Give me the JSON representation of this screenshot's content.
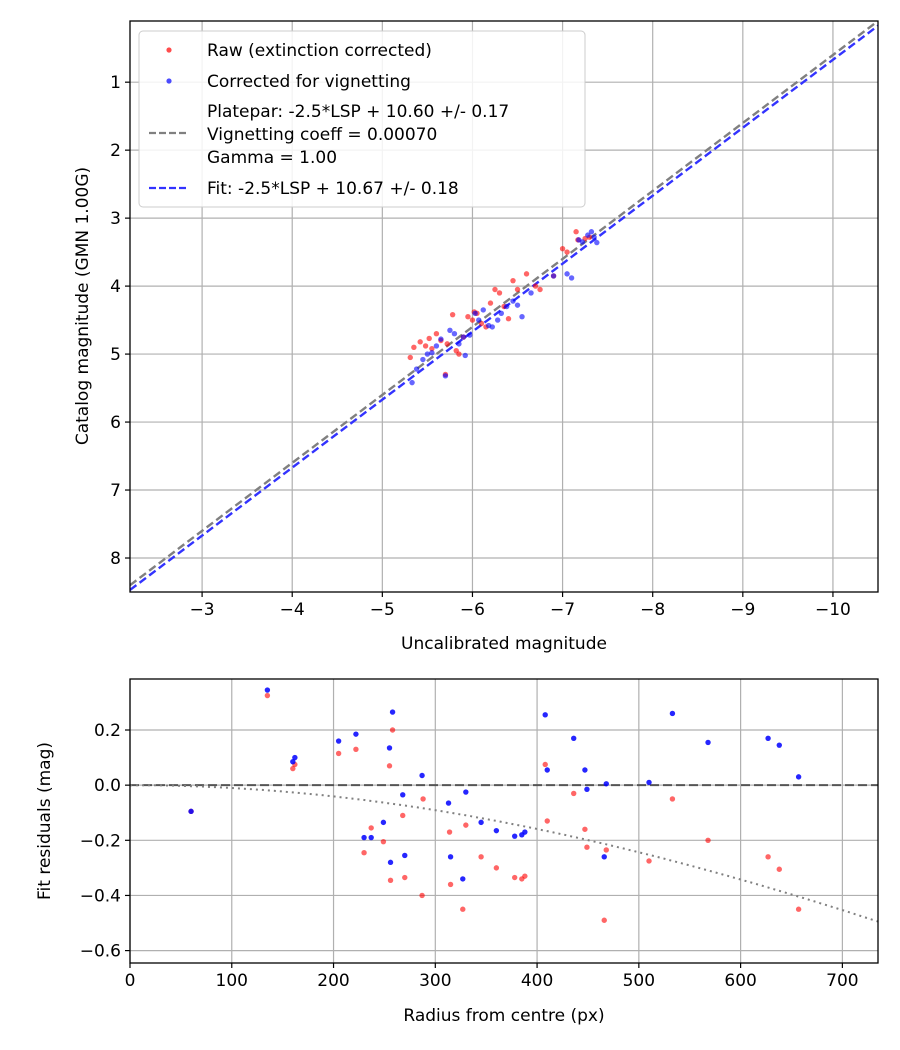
{
  "colors": {
    "raw": "#ff0000",
    "corrected": "#0000ff",
    "platepar_line": "#808080",
    "fit_line": "#3333ff",
    "zero_line": "#555555",
    "vignetting_curve": "#808080"
  },
  "chart_data": [
    {
      "id": "top",
      "type": "scatter",
      "xlabel": "Uncalibrated magnitude",
      "ylabel": "Catalog magnitude (GMN 1.00G)",
      "xlim": [
        -2.2,
        -10.5
      ],
      "ylim": [
        8.5,
        0.1
      ],
      "xticks": [
        -3,
        -4,
        -5,
        -6,
        -7,
        -8,
        -9,
        -10
      ],
      "xtick_labels": [
        "−3",
        "−4",
        "−5",
        "−6",
        "−7",
        "−8",
        "−9",
        "−10"
      ],
      "yticks": [
        1,
        2,
        3,
        4,
        5,
        6,
        7,
        8
      ],
      "ytick_labels": [
        "1",
        "2",
        "3",
        "4",
        "5",
        "6",
        "7",
        "8"
      ],
      "legend": {
        "location": "upper-left",
        "entries": [
          {
            "label": "Raw (extinction corrected)",
            "kind": "marker",
            "color": "raw"
          },
          {
            "label": "Corrected for vignetting",
            "kind": "marker",
            "color": "corrected"
          },
          {
            "label": "Platepar: -2.5*LSP + 10.60 +/- 0.17",
            "kind": "none"
          },
          {
            "label": "Vignetting coeff = 0.00070",
            "kind": "dashed",
            "color": "platepar_line"
          },
          {
            "label": "Gamma = 1.00",
            "kind": "none"
          },
          {
            "label": "Fit: -2.5*LSP + 10.67 +/- 0.18",
            "kind": "dashed",
            "color": "fit_line"
          }
        ]
      },
      "lines": [
        {
          "name": "platepar",
          "slope": 1,
          "intercept": 10.6,
          "color": "platepar_line"
        },
        {
          "name": "fit",
          "slope": 1,
          "intercept": 10.67,
          "color": "fit_line"
        }
      ],
      "series": [
        {
          "name": "Raw (extinction corrected)",
          "color": "raw",
          "x": [
            -5.31,
            -5.35,
            -5.42,
            -5.48,
            -5.52,
            -5.55,
            -5.6,
            -5.65,
            -5.7,
            -5.72,
            -5.78,
            -5.82,
            -5.85,
            -5.9,
            -5.95,
            -6.0,
            -6.02,
            -6.05,
            -6.1,
            -6.15,
            -6.2,
            -6.25,
            -6.3,
            -6.35,
            -6.4,
            -6.45,
            -6.5,
            -6.6,
            -6.7,
            -6.75,
            -6.9,
            -7.0,
            -7.05,
            -7.15,
            -7.17,
            -7.25,
            -7.3
          ],
          "y": [
            5.05,
            4.9,
            4.82,
            4.88,
            4.77,
            4.92,
            4.7,
            4.8,
            5.3,
            4.85,
            4.42,
            4.95,
            5.0,
            4.75,
            4.45,
            4.5,
            4.38,
            4.4,
            4.55,
            4.6,
            4.25,
            4.05,
            4.1,
            4.3,
            4.48,
            3.92,
            4.05,
            3.82,
            4.0,
            4.05,
            3.85,
            3.45,
            3.5,
            3.2,
            3.32,
            3.3,
            3.28
          ]
        },
        {
          "name": "Corrected for vignetting",
          "color": "corrected",
          "x": [
            -5.33,
            -5.38,
            -5.45,
            -5.5,
            -5.55,
            -5.6,
            -5.65,
            -5.7,
            -5.75,
            -5.8,
            -5.85,
            -5.9,
            -5.92,
            -5.97,
            -6.03,
            -6.07,
            -6.12,
            -6.18,
            -6.22,
            -6.28,
            -6.32,
            -6.38,
            -6.45,
            -6.5,
            -6.55,
            -6.65,
            -6.9,
            -7.05,
            -7.1,
            -7.18,
            -7.22,
            -7.28,
            -7.32,
            -7.35,
            -7.38
          ],
          "y": [
            5.42,
            5.22,
            5.08,
            5.0,
            4.98,
            4.88,
            4.78,
            5.32,
            4.65,
            4.7,
            4.85,
            4.75,
            5.02,
            4.72,
            4.4,
            4.5,
            4.35,
            4.58,
            4.6,
            4.5,
            4.4,
            4.3,
            4.22,
            4.28,
            4.45,
            4.1,
            3.85,
            3.82,
            3.88,
            3.32,
            3.35,
            3.25,
            3.2,
            3.28,
            3.36
          ]
        }
      ]
    },
    {
      "id": "bottom",
      "type": "scatter",
      "xlabel": "Radius from centre (px)",
      "ylabel": "Fit residuals (mag)",
      "xlim": [
        0,
        735
      ],
      "ylim": [
        -0.645,
        0.385
      ],
      "xticks": [
        0,
        100,
        200,
        300,
        400,
        500,
        600,
        700
      ],
      "xtick_labels": [
        "0",
        "100",
        "200",
        "300",
        "400",
        "500",
        "600",
        "700"
      ],
      "yticks": [
        0.2,
        0.0,
        -0.2,
        -0.4,
        -0.6
      ],
      "ytick_labels": [
        "0.2",
        "0.0",
        "−0.2",
        "−0.4",
        "−0.6"
      ],
      "zero_line": 0.0,
      "vignetting_curve": {
        "coeff": 0.0007,
        "note": "dotted curve"
      },
      "series": [
        {
          "name": "Raw",
          "color": "raw",
          "x": [
            60,
            135,
            160,
            162,
            205,
            222,
            230,
            237,
            249,
            255,
            256,
            258,
            268,
            270,
            287,
            288,
            314,
            315,
            327,
            330,
            345,
            360,
            378,
            385,
            388,
            408,
            410,
            436,
            447,
            449,
            466,
            468,
            510,
            533,
            568,
            627,
            638,
            657
          ],
          "y": [
            -0.095,
            0.325,
            0.06,
            0.075,
            0.115,
            0.13,
            -0.245,
            -0.155,
            -0.205,
            0.07,
            -0.345,
            0.2,
            -0.11,
            -0.335,
            -0.4,
            -0.05,
            -0.17,
            -0.36,
            -0.45,
            -0.145,
            -0.26,
            -0.3,
            -0.335,
            -0.34,
            -0.33,
            0.075,
            -0.13,
            -0.03,
            -0.16,
            -0.225,
            -0.49,
            -0.235,
            -0.275,
            -0.05,
            -0.2,
            -0.26,
            -0.305,
            -0.45
          ]
        },
        {
          "name": "Corrected",
          "color": "corrected",
          "x": [
            60,
            135,
            160,
            162,
            205,
            222,
            230,
            237,
            249,
            255,
            256,
            258,
            268,
            270,
            287,
            313,
            315,
            327,
            330,
            345,
            360,
            378,
            385,
            388,
            408,
            410,
            436,
            447,
            449,
            466,
            468,
            510,
            533,
            568,
            627,
            638,
            657
          ],
          "y": [
            -0.095,
            0.345,
            0.085,
            0.1,
            0.16,
            0.185,
            -0.19,
            -0.19,
            -0.135,
            0.135,
            -0.28,
            0.265,
            -0.035,
            -0.255,
            0.035,
            -0.065,
            -0.26,
            -0.34,
            -0.025,
            -0.135,
            -0.165,
            -0.185,
            -0.18,
            -0.17,
            0.255,
            0.055,
            0.17,
            0.055,
            -0.015,
            -0.26,
            0.005,
            0.01,
            0.26,
            0.155,
            0.17,
            0.145,
            0.03
          ]
        }
      ]
    }
  ]
}
